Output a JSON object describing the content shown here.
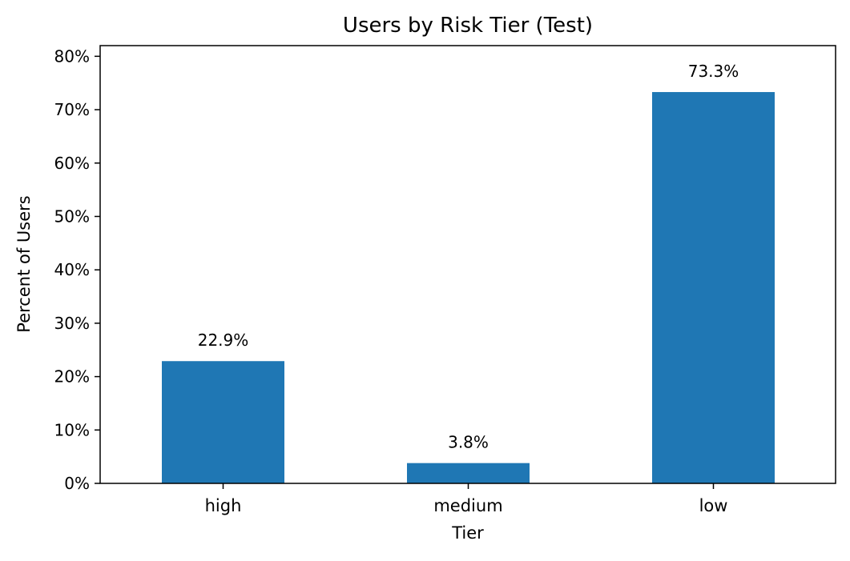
{
  "chart_data": {
    "type": "bar",
    "title": "Users by Risk Tier (Test)",
    "xlabel": "Tier",
    "ylabel": "Percent of Users",
    "categories": [
      "high",
      "medium",
      "low"
    ],
    "values": [
      22.9,
      3.8,
      73.3
    ],
    "value_labels": [
      "22.9%",
      "3.8%",
      "73.3%"
    ],
    "ylim": [
      0,
      82
    ],
    "yticks": [
      0,
      10,
      20,
      30,
      40,
      50,
      60,
      70,
      80
    ],
    "ytick_labels": [
      "0%",
      "10%",
      "20%",
      "30%",
      "40%",
      "50%",
      "60%",
      "70%",
      "80%"
    ],
    "grid": false,
    "legend": "none",
    "colors": {
      "bar": "#1f77b4",
      "axis": "#000000",
      "text": "#000000"
    }
  }
}
